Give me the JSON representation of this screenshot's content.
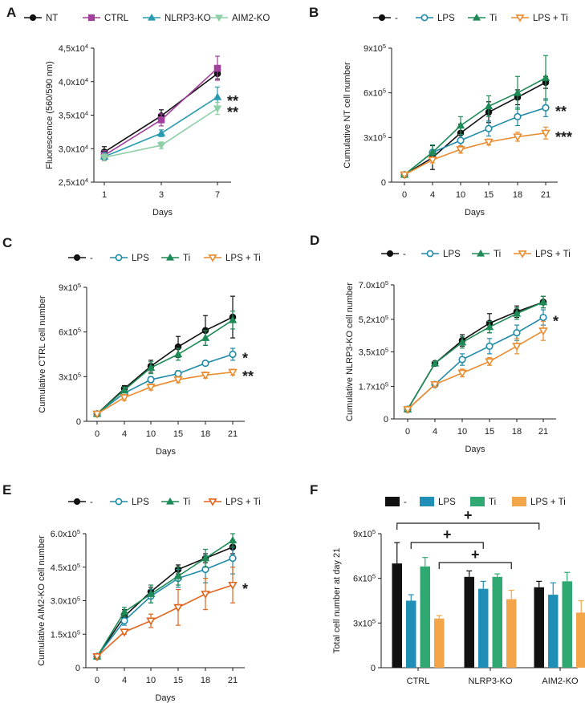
{
  "chart_data": [
    {
      "id": "A",
      "panel_label": "A",
      "type": "line",
      "xlabel": "Days",
      "ylabel": "Fluorescence (560/590 nm)",
      "categories": [
        "1",
        "3",
        "7"
      ],
      "ylim": [
        25000,
        45000
      ],
      "yticks": [
        25000,
        30000,
        35000,
        40000,
        45000
      ],
      "ytick_labels": [
        "2,5x10^4",
        "3,0x10^4",
        "3,5x10^4",
        "4,0x10^4",
        "4,5x10^4"
      ],
      "legend_rows": [
        [
          0,
          1,
          2,
          3
        ]
      ],
      "series": [
        {
          "name": "NT",
          "color": "#111111",
          "marker": "circle",
          "values": [
            29500,
            34900,
            41200
          ],
          "errors": [
            800,
            900,
            800
          ]
        },
        {
          "name": "CTRL",
          "color": "#a0409a",
          "marker": "square",
          "values": [
            29000,
            34300,
            42000
          ],
          "errors": [
            700,
            900,
            1800
          ]
        },
        {
          "name": "NLRP3-KO",
          "color": "#2a9bb0",
          "marker": "triangle",
          "values": [
            28800,
            32300,
            37700
          ],
          "errors": [
            600,
            500,
            1500
          ]
        },
        {
          "name": "AIM2-KO",
          "color": "#8fcfa7",
          "marker": "triangle-down",
          "values": [
            28700,
            30500,
            36000
          ],
          "errors": [
            500,
            500,
            900
          ]
        }
      ],
      "annotations": [
        {
          "text": "**",
          "series": 2,
          "index": 2
        },
        {
          "text": "**",
          "series": 3,
          "index": 2
        }
      ]
    },
    {
      "id": "B",
      "panel_label": "B",
      "type": "line",
      "xlabel": "Days",
      "ylabel": "Cumulative NT cell number",
      "categories": [
        "0",
        "4",
        "10",
        "15",
        "18",
        "21"
      ],
      "ylim": [
        0,
        900000
      ],
      "yticks": [
        0,
        300000,
        600000,
        900000
      ],
      "ytick_labels": [
        "0",
        "3x10^5",
        "6x10^5",
        "9x10^5"
      ],
      "legend_rows": [
        [
          0,
          1,
          2,
          3
        ]
      ],
      "series": [
        {
          "name": "-",
          "color": "#111111",
          "marker": "circle",
          "values": [
            50000,
            165000,
            330000,
            470000,
            570000,
            670000
          ],
          "errors": [
            10000,
            80000,
            60000,
            70000,
            50000,
            40000
          ]
        },
        {
          "name": "LPS",
          "color": "#1f8aa8",
          "marker": "circle-open",
          "values": [
            50000,
            200000,
            280000,
            360000,
            440000,
            500000
          ],
          "errors": [
            10000,
            50000,
            40000,
            50000,
            60000,
            60000
          ]
        },
        {
          "name": "Ti",
          "color": "#1e8a56",
          "marker": "triangle",
          "values": [
            50000,
            200000,
            380000,
            510000,
            600000,
            700000
          ],
          "errors": [
            10000,
            50000,
            60000,
            70000,
            110000,
            150000
          ]
        },
        {
          "name": "LPS + Ti",
          "color": "#e98b2e",
          "marker": "triangle-down-open",
          "values": [
            50000,
            150000,
            220000,
            270000,
            305000,
            330000
          ],
          "errors": [
            10000,
            20000,
            25000,
            20000,
            30000,
            40000
          ]
        }
      ],
      "annotations": [
        {
          "text": "**",
          "series": 1,
          "index": 5
        },
        {
          "text": "***",
          "series": 3,
          "index": 5
        }
      ]
    },
    {
      "id": "C",
      "panel_label": "C",
      "type": "line",
      "xlabel": "Days",
      "ylabel": "Cumulative CTRL cell number",
      "categories": [
        "0",
        "4",
        "10",
        "15",
        "18",
        "21"
      ],
      "ylim": [
        0,
        900000
      ],
      "yticks": [
        0,
        300000,
        600000,
        900000
      ],
      "ytick_labels": [
        "0",
        "3x10^5",
        "6x10^5",
        "9x10^5"
      ],
      "legend_rows": [
        [
          0,
          1,
          2,
          3
        ]
      ],
      "series": [
        {
          "name": "-",
          "color": "#111111",
          "marker": "circle",
          "values": [
            50000,
            220000,
            370000,
            500000,
            610000,
            700000
          ],
          "errors": [
            10000,
            20000,
            40000,
            70000,
            100000,
            140000
          ]
        },
        {
          "name": "LPS",
          "color": "#1f8aa8",
          "marker": "circle-open",
          "values": [
            50000,
            190000,
            280000,
            320000,
            390000,
            450000
          ],
          "errors": [
            10000,
            20000,
            20000,
            20000,
            10000,
            40000
          ]
        },
        {
          "name": "Ti",
          "color": "#1e8a56",
          "marker": "triangle",
          "values": [
            50000,
            210000,
            360000,
            450000,
            560000,
            680000
          ],
          "errors": [
            10000,
            20000,
            40000,
            40000,
            50000,
            60000
          ]
        },
        {
          "name": "LPS + Ti",
          "color": "#e98b2e",
          "marker": "triangle-down-open",
          "values": [
            50000,
            160000,
            230000,
            280000,
            310000,
            330000
          ],
          "errors": [
            10000,
            20000,
            20000,
            20000,
            20000,
            20000
          ]
        }
      ],
      "annotations": [
        {
          "text": "*",
          "series": 1,
          "index": 5
        },
        {
          "text": "**",
          "series": 3,
          "index": 5
        }
      ]
    },
    {
      "id": "D",
      "panel_label": "D",
      "type": "line",
      "xlabel": "Days",
      "ylabel": "Cumulative NLRP3-KO cell number",
      "categories": [
        "0",
        "4",
        "10",
        "15",
        "18",
        "21"
      ],
      "ylim": [
        0,
        700000
      ],
      "yticks": [
        0,
        170000,
        350000,
        520000,
        700000
      ],
      "ytick_labels": [
        "0",
        "1.7x10^5",
        "3,5x10^5",
        "5,2x10^5",
        "7.0x10^5"
      ],
      "legend_rows": [
        [
          0,
          1,
          2,
          3
        ]
      ],
      "series": [
        {
          "name": "-",
          "color": "#111111",
          "marker": "circle",
          "values": [
            50000,
            290000,
            410000,
            500000,
            560000,
            610000
          ],
          "errors": [
            5000,
            10000,
            30000,
            50000,
            30000,
            30000
          ]
        },
        {
          "name": "LPS",
          "color": "#1f8aa8",
          "marker": "circle-open",
          "values": [
            50000,
            180000,
            310000,
            380000,
            450000,
            530000
          ],
          "errors": [
            5000,
            10000,
            30000,
            40000,
            40000,
            40000
          ]
        },
        {
          "name": "Ti",
          "color": "#1e8a56",
          "marker": "triangle",
          "values": [
            50000,
            290000,
            400000,
            480000,
            550000,
            610000
          ],
          "errors": [
            5000,
            10000,
            30000,
            30000,
            30000,
            30000
          ]
        },
        {
          "name": "LPS + Ti",
          "color": "#e98b2e",
          "marker": "triangle-down-open",
          "values": [
            50000,
            180000,
            240000,
            300000,
            380000,
            460000
          ],
          "errors": [
            5000,
            10000,
            20000,
            20000,
            40000,
            50000
          ]
        }
      ],
      "annotations": [
        {
          "text": "*",
          "series": 1,
          "index": 5
        }
      ]
    },
    {
      "id": "E",
      "panel_label": "E",
      "type": "line",
      "xlabel": "Days",
      "ylabel": "Cumulative AIM2-KO cell number",
      "categories": [
        "0",
        "4",
        "10",
        "15",
        "18",
        "21"
      ],
      "ylim": [
        0,
        600000
      ],
      "yticks": [
        0,
        150000,
        300000,
        450000,
        600000
      ],
      "ytick_labels": [
        "0",
        "1.5x10^5",
        "3.0x10^5",
        "4.5x10^5",
        "6.0x10^5"
      ],
      "legend_rows": [
        [
          0,
          1,
          2,
          3
        ]
      ],
      "series": [
        {
          "name": "-",
          "color": "#111111",
          "marker": "circle",
          "values": [
            50000,
            230000,
            340000,
            440000,
            490000,
            540000
          ],
          "errors": [
            5000,
            30000,
            20000,
            20000,
            20000,
            30000
          ]
        },
        {
          "name": "LPS",
          "color": "#1f8aa8",
          "marker": "circle-open",
          "values": [
            50000,
            210000,
            320000,
            400000,
            440000,
            490000
          ],
          "errors": [
            5000,
            20000,
            30000,
            40000,
            60000,
            70000
          ]
        },
        {
          "name": "Ti",
          "color": "#1e8a56",
          "marker": "triangle",
          "values": [
            50000,
            250000,
            330000,
            410000,
            490000,
            570000
          ],
          "errors": [
            5000,
            20000,
            40000,
            40000,
            40000,
            30000
          ]
        },
        {
          "name": "LPS + Ti",
          "color": "#e0641c",
          "marker": "triangle-down-open",
          "values": [
            50000,
            160000,
            210000,
            270000,
            330000,
            370000
          ],
          "errors": [
            5000,
            10000,
            30000,
            80000,
            70000,
            80000
          ]
        }
      ],
      "annotations": [
        {
          "text": "*",
          "series": 3,
          "index": 5
        }
      ]
    },
    {
      "id": "F",
      "panel_label": "F",
      "type": "bar",
      "xlabel": "",
      "ylabel": "Total cell number at day 21",
      "categories": [
        "CTRL",
        "NLRP3-KO",
        "AIM2-KO"
      ],
      "ylim": [
        0,
        900000
      ],
      "yticks": [
        0,
        300000,
        600000,
        900000
      ],
      "ytick_labels": [
        "0",
        "3x10^5",
        "6x10^5",
        "9x10^5"
      ],
      "legend_rows": [
        [
          0,
          1,
          2,
          3
        ]
      ],
      "series": [
        {
          "name": "-",
          "color": "#111111",
          "values": [
            700000,
            610000,
            540000
          ],
          "errors": [
            140000,
            40000,
            40000
          ]
        },
        {
          "name": "LPS",
          "color": "#1f8fb8",
          "values": [
            450000,
            530000,
            490000
          ],
          "errors": [
            40000,
            50000,
            80000
          ]
        },
        {
          "name": "Ti",
          "color": "#2fa872",
          "values": [
            680000,
            610000,
            580000
          ],
          "errors": [
            60000,
            20000,
            60000
          ]
        },
        {
          "name": "LPS + Ti",
          "color": "#f3a54a",
          "values": [
            330000,
            460000,
            370000
          ],
          "errors": [
            20000,
            60000,
            80000
          ]
        }
      ],
      "brackets": [
        {
          "text": "+",
          "from": [
            0,
            0
          ],
          "to": [
            2,
            0
          ],
          "level": 0
        },
        {
          "text": "+",
          "from": [
            0,
            1
          ],
          "to": [
            1,
            1
          ],
          "level": 1
        },
        {
          "text": "+",
          "from": [
            0,
            3
          ],
          "to": [
            1,
            3
          ],
          "level": 2
        }
      ]
    }
  ]
}
